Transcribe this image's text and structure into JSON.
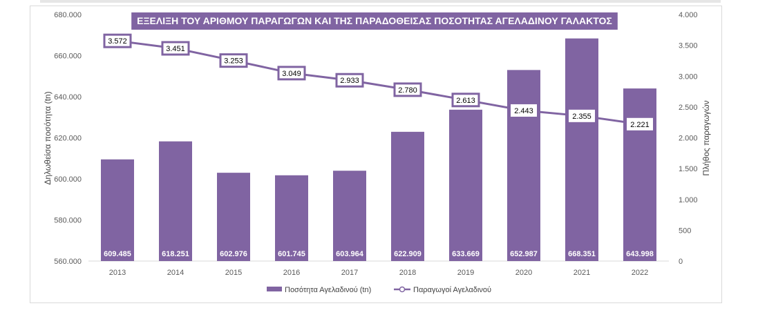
{
  "chart_data": {
    "type": "bar+line",
    "title": "ΕΞΕΛΙΞΗ ΤΟΥ ΑΡΙΘΜΟΥ ΠΑΡΑΓΩΓΩΝ ΚΑΙ ΤΗΣ ΠΑΡΑΔΟΘΕΙΣΑΣ ΠΟΣΟΤΗΤΑΣ ΑΓΕΛΑΔΙΝΟΥ ΓΑΛΑΚΤΟΣ",
    "categories": [
      "2013",
      "2014",
      "2015",
      "2016",
      "2017",
      "2018",
      "2019",
      "2020",
      "2021",
      "2022"
    ],
    "bars": {
      "name": "Ποσότητα Αγελαδινού (tn)",
      "axis": "left",
      "values": [
        609485,
        618251,
        602976,
        601745,
        603964,
        622909,
        633669,
        652987,
        668351,
        643998
      ],
      "labels": [
        "609.485",
        "618.251",
        "602.976",
        "601.745",
        "603.964",
        "622.909",
        "633.669",
        "652.987",
        "668.351",
        "643.998"
      ]
    },
    "line": {
      "name": "Παραγωγοί Αγελαδινού",
      "axis": "right",
      "values": [
        3572,
        3451,
        3253,
        3049,
        2933,
        2780,
        2613,
        2443,
        2355,
        2221
      ],
      "labels": [
        "3.572",
        "3.451",
        "3.253",
        "3.049",
        "2.933",
        "2.780",
        "2.613",
        "2.443",
        "2.355",
        "2.221"
      ]
    },
    "left_axis": {
      "label": "Δηλωθείσα ποσότητα (tn)",
      "ylim": [
        560000,
        680000
      ],
      "ticks": [
        560000,
        580000,
        600000,
        620000,
        640000,
        660000,
        680000
      ],
      "tick_labels": [
        "560.000",
        "580.000",
        "600.000",
        "620.000",
        "640.000",
        "660.000",
        "680.000"
      ]
    },
    "right_axis": {
      "label": "Πλήθος παραγωγών",
      "ylim": [
        0,
        4000
      ],
      "ticks": [
        0,
        500,
        1000,
        1500,
        2000,
        2500,
        3000,
        3500,
        4000
      ],
      "tick_labels": [
        "0",
        "500",
        "1.000",
        "1.500",
        "2.000",
        "2.500",
        "3.000",
        "3.500",
        "4.000"
      ]
    },
    "grid": false,
    "legend_position": "bottom",
    "colors": {
      "bar": "#8064a2",
      "line": "#8064a2",
      "title_background": "#8064a2",
      "title_text": "#ffffff",
      "bar_label_text": "#ffffff",
      "line_label_box": "#ffffff"
    }
  }
}
